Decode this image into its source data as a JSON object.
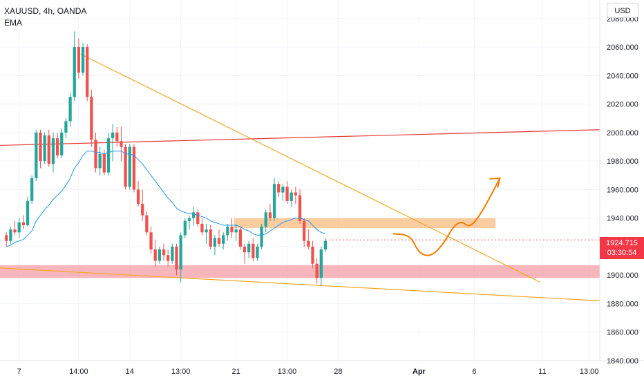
{
  "legend": {
    "symbol_line": "XAUUSD, 4h, OANDA",
    "indicator": "EMA"
  },
  "currency_button": "USD",
  "last_price": {
    "value": "1924.715",
    "countdown": "03:30:54",
    "color": "#f23645"
  },
  "colors": {
    "up": "#26a69a",
    "down": "#ef5350",
    "ema": "#2196f3",
    "trend": "#f5a623",
    "resistance": "#e53935",
    "zone_orange": "#f9c08a",
    "zone_red": "#f7a3ab",
    "arrow": "#f57c00"
  },
  "chart_data": {
    "type": "candlestick",
    "symbol": "XAUUSD",
    "timeframe": "4h",
    "ylim": [
      1840,
      2093
    ],
    "yticks": [
      "2080.000",
      "2060.000",
      "2040.000",
      "2020.000",
      "2000.000",
      "1980.000",
      "1960.000",
      "1940.000",
      "1920.000",
      "1900.000",
      "1880.000",
      "1860.000",
      "1840.000"
    ],
    "xticks": [
      {
        "label": "7",
        "bar": 4
      },
      {
        "label": "14:00",
        "bar": 18
      },
      {
        "label": "14",
        "bar": 30
      },
      {
        "label": "13:00",
        "bar": 42
      },
      {
        "label": "21",
        "bar": 55
      },
      {
        "label": "13:00",
        "bar": 67
      },
      {
        "label": "28",
        "bar": 79
      },
      {
        "label": "Apr",
        "bar": 98,
        "bold": true
      },
      {
        "label": "6",
        "bar": 111
      },
      {
        "label": "11",
        "bar": 127
      },
      {
        "label": "13:00",
        "bar": 138
      }
    ],
    "bars_visible": 141,
    "candles": [
      [
        1928,
        1930,
        1920,
        1924
      ],
      [
        1924,
        1934,
        1922,
        1932
      ],
      [
        1932,
        1938,
        1928,
        1930
      ],
      [
        1930,
        1940,
        1926,
        1937
      ],
      [
        1937,
        1942,
        1932,
        1935
      ],
      [
        1935,
        1955,
        1934,
        1952
      ],
      [
        1952,
        1970,
        1950,
        1968
      ],
      [
        1968,
        2002,
        1966,
        2000
      ],
      [
        2000,
        2002,
        1975,
        1980
      ],
      [
        1980,
        2000,
        1978,
        1998
      ],
      [
        1998,
        2002,
        1976,
        1978
      ],
      [
        1978,
        2000,
        1972,
        1996
      ],
      [
        1996,
        2000,
        1982,
        1984
      ],
      [
        1984,
        2003,
        1982,
        2000
      ],
      [
        2000,
        2010,
        1996,
        2008
      ],
      [
        2008,
        2028,
        2004,
        2025
      ],
      [
        2025,
        2071,
        2022,
        2060
      ],
      [
        2060,
        2066,
        2038,
        2042
      ],
      [
        2042,
        2063,
        2040,
        2060
      ],
      [
        2060,
        2062,
        2022,
        2025
      ],
      [
        2025,
        2030,
        1990,
        1995
      ],
      [
        1995,
        2000,
        1972,
        1975
      ],
      [
        1975,
        1990,
        1970,
        1985
      ],
      [
        1985,
        1988,
        1970,
        1972
      ],
      [
        1972,
        2000,
        1970,
        1996
      ],
      [
        1996,
        2006,
        1980,
        2000
      ],
      [
        2000,
        2004,
        1990,
        1994
      ],
      [
        1994,
        2004,
        1980,
        1990
      ],
      [
        1990,
        1992,
        1960,
        1962
      ],
      [
        1962,
        1992,
        1960,
        1990
      ],
      [
        1990,
        1992,
        1958,
        1960
      ],
      [
        1960,
        1966,
        1948,
        1950
      ],
      [
        1950,
        1960,
        1938,
        1942
      ],
      [
        1942,
        1945,
        1928,
        1930
      ],
      [
        1930,
        1934,
        1915,
        1918
      ],
      [
        1918,
        1925,
        1906,
        1910
      ],
      [
        1910,
        1920,
        1908,
        1918
      ],
      [
        1918,
        1922,
        1910,
        1914
      ],
      [
        1914,
        1918,
        1906,
        1910
      ],
      [
        1910,
        1922,
        1908,
        1920
      ],
      [
        1920,
        1922,
        1900,
        1904
      ],
      [
        1904,
        1930,
        1895,
        1928
      ],
      [
        1928,
        1940,
        1926,
        1938
      ],
      [
        1938,
        1942,
        1932,
        1940
      ],
      [
        1940,
        1948,
        1935,
        1944
      ],
      [
        1944,
        1946,
        1934,
        1936
      ],
      [
        1936,
        1940,
        1928,
        1930
      ],
      [
        1930,
        1936,
        1922,
        1932
      ],
      [
        1932,
        1935,
        1918,
        1920
      ],
      [
        1920,
        1928,
        1914,
        1926
      ],
      [
        1926,
        1932,
        1920,
        1922
      ],
      [
        1922,
        1930,
        1918,
        1928
      ],
      [
        1928,
        1936,
        1924,
        1934
      ],
      [
        1934,
        1940,
        1926,
        1930
      ],
      [
        1930,
        1936,
        1924,
        1932
      ],
      [
        1932,
        1934,
        1918,
        1920
      ],
      [
        1920,
        1922,
        1908,
        1916
      ],
      [
        1916,
        1924,
        1912,
        1922
      ],
      [
        1922,
        1926,
        1910,
        1912
      ],
      [
        1912,
        1922,
        1910,
        1920
      ],
      [
        1920,
        1936,
        1918,
        1934
      ],
      [
        1934,
        1946,
        1930,
        1944
      ],
      [
        1944,
        1950,
        1938,
        1940
      ],
      [
        1940,
        1968,
        1938,
        1964
      ],
      [
        1964,
        1966,
        1955,
        1958
      ],
      [
        1958,
        1964,
        1952,
        1962
      ],
      [
        1962,
        1966,
        1950,
        1952
      ],
      [
        1952,
        1960,
        1948,
        1958
      ],
      [
        1958,
        1962,
        1950,
        1956
      ],
      [
        1956,
        1960,
        1936,
        1938
      ],
      [
        1938,
        1940,
        1920,
        1924
      ],
      [
        1924,
        1932,
        1918,
        1920
      ],
      [
        1920,
        1924,
        1905,
        1908
      ],
      [
        1908,
        1912,
        1894,
        1898
      ],
      [
        1898,
        1920,
        1892,
        1918
      ],
      [
        1918,
        1926,
        1916,
        1924
      ]
    ],
    "candle_start_bar": 1,
    "ema_label": "EMA",
    "ema": [
      1920,
      1921,
      1923,
      1924,
      1925,
      1928,
      1931,
      1938,
      1942,
      1946,
      1949,
      1953,
      1956,
      1959,
      1963,
      1968,
      1975,
      1979,
      1984,
      1987,
      1987,
      1986,
      1986,
      1985,
      1986,
      1987,
      1987,
      1987,
      1985,
      1985,
      1984,
      1981,
      1978,
      1974,
      1970,
      1966,
      1962,
      1958,
      1954,
      1951,
      1947,
      1945,
      1944,
      1943,
      1943,
      1942,
      1941,
      1940,
      1938,
      1937,
      1936,
      1935,
      1935,
      1935,
      1935,
      1934,
      1932,
      1931,
      1929,
      1928,
      1928,
      1929,
      1931,
      1933,
      1935,
      1937,
      1938,
      1939,
      1940,
      1940,
      1939,
      1938,
      1935,
      1932,
      1930,
      1929
    ],
    "ema_start_bar": 1,
    "lines": [
      {
        "name": "resistance",
        "from": [
          0,
          1991
        ],
        "to": [
          141,
          2002
        ]
      },
      {
        "name": "upper-trend",
        "from": [
          19,
          2055
        ],
        "to": [
          127,
          1895
        ]
      },
      {
        "name": "lower-trend",
        "from": [
          0,
          1905
        ],
        "to": [
          141,
          1882
        ]
      }
    ],
    "zones": [
      {
        "name": "supply-zone",
        "from_bar": 55,
        "to_bar": 116,
        "low": 1933,
        "high": 1940
      },
      {
        "name": "demand-zone",
        "from_bar": 0,
        "to_bar": 141,
        "low": 1898,
        "high": 1907
      }
    ],
    "projection": [
      [
        92,
        1929
      ],
      [
        96,
        1928
      ],
      [
        98,
        1915
      ],
      [
        101,
        1913
      ],
      [
        104,
        1923
      ],
      [
        106,
        1934
      ],
      [
        108,
        1938
      ],
      [
        110,
        1933
      ],
      [
        113,
        1945
      ],
      [
        117,
        1968
      ]
    ]
  }
}
